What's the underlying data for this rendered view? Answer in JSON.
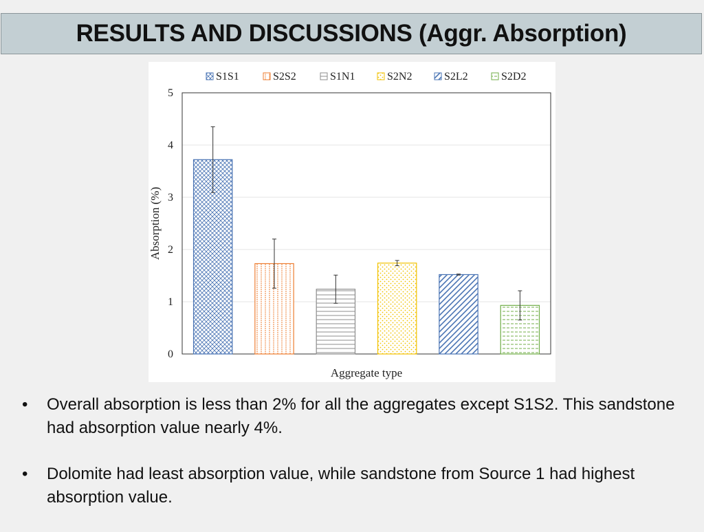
{
  "slide": {
    "title": "RESULTS AND DISCUSSIONS (Aggr. Absorption)",
    "bullets": [
      "Overall absorption is less than 2% for all the aggregates except S1S2. This sandstone had absorption value nearly 4%.",
      "Dolomite had least absorption value, while sandstone from Source 1 had highest absorption value."
    ]
  },
  "chart_data": {
    "type": "bar",
    "categories": [
      "S1S1",
      "S2S2",
      "S1N1",
      "S2N2",
      "S2L2",
      "S2D2"
    ],
    "values": [
      3.72,
      1.73,
      1.24,
      1.74,
      1.52,
      0.93
    ],
    "error": [
      0.63,
      0.47,
      0.27,
      0.05,
      0.01,
      0.28
    ],
    "colors": [
      "#4a74b4",
      "#ed7d31",
      "#8c8c8c",
      "#f2c200",
      "#4a74b4",
      "#70ad47"
    ],
    "patterns": [
      "crosshatch",
      "vertical-dash",
      "horizontal",
      "dots",
      "diagonal",
      "horizontal-dash"
    ],
    "xlabel": "Aggregate type",
    "ylabel": "Absorption (%)",
    "ylim": [
      0,
      5
    ],
    "yticks": [
      "0",
      "1",
      "2",
      "3",
      "4",
      "5"
    ],
    "legend": "top",
    "grid": true
  }
}
